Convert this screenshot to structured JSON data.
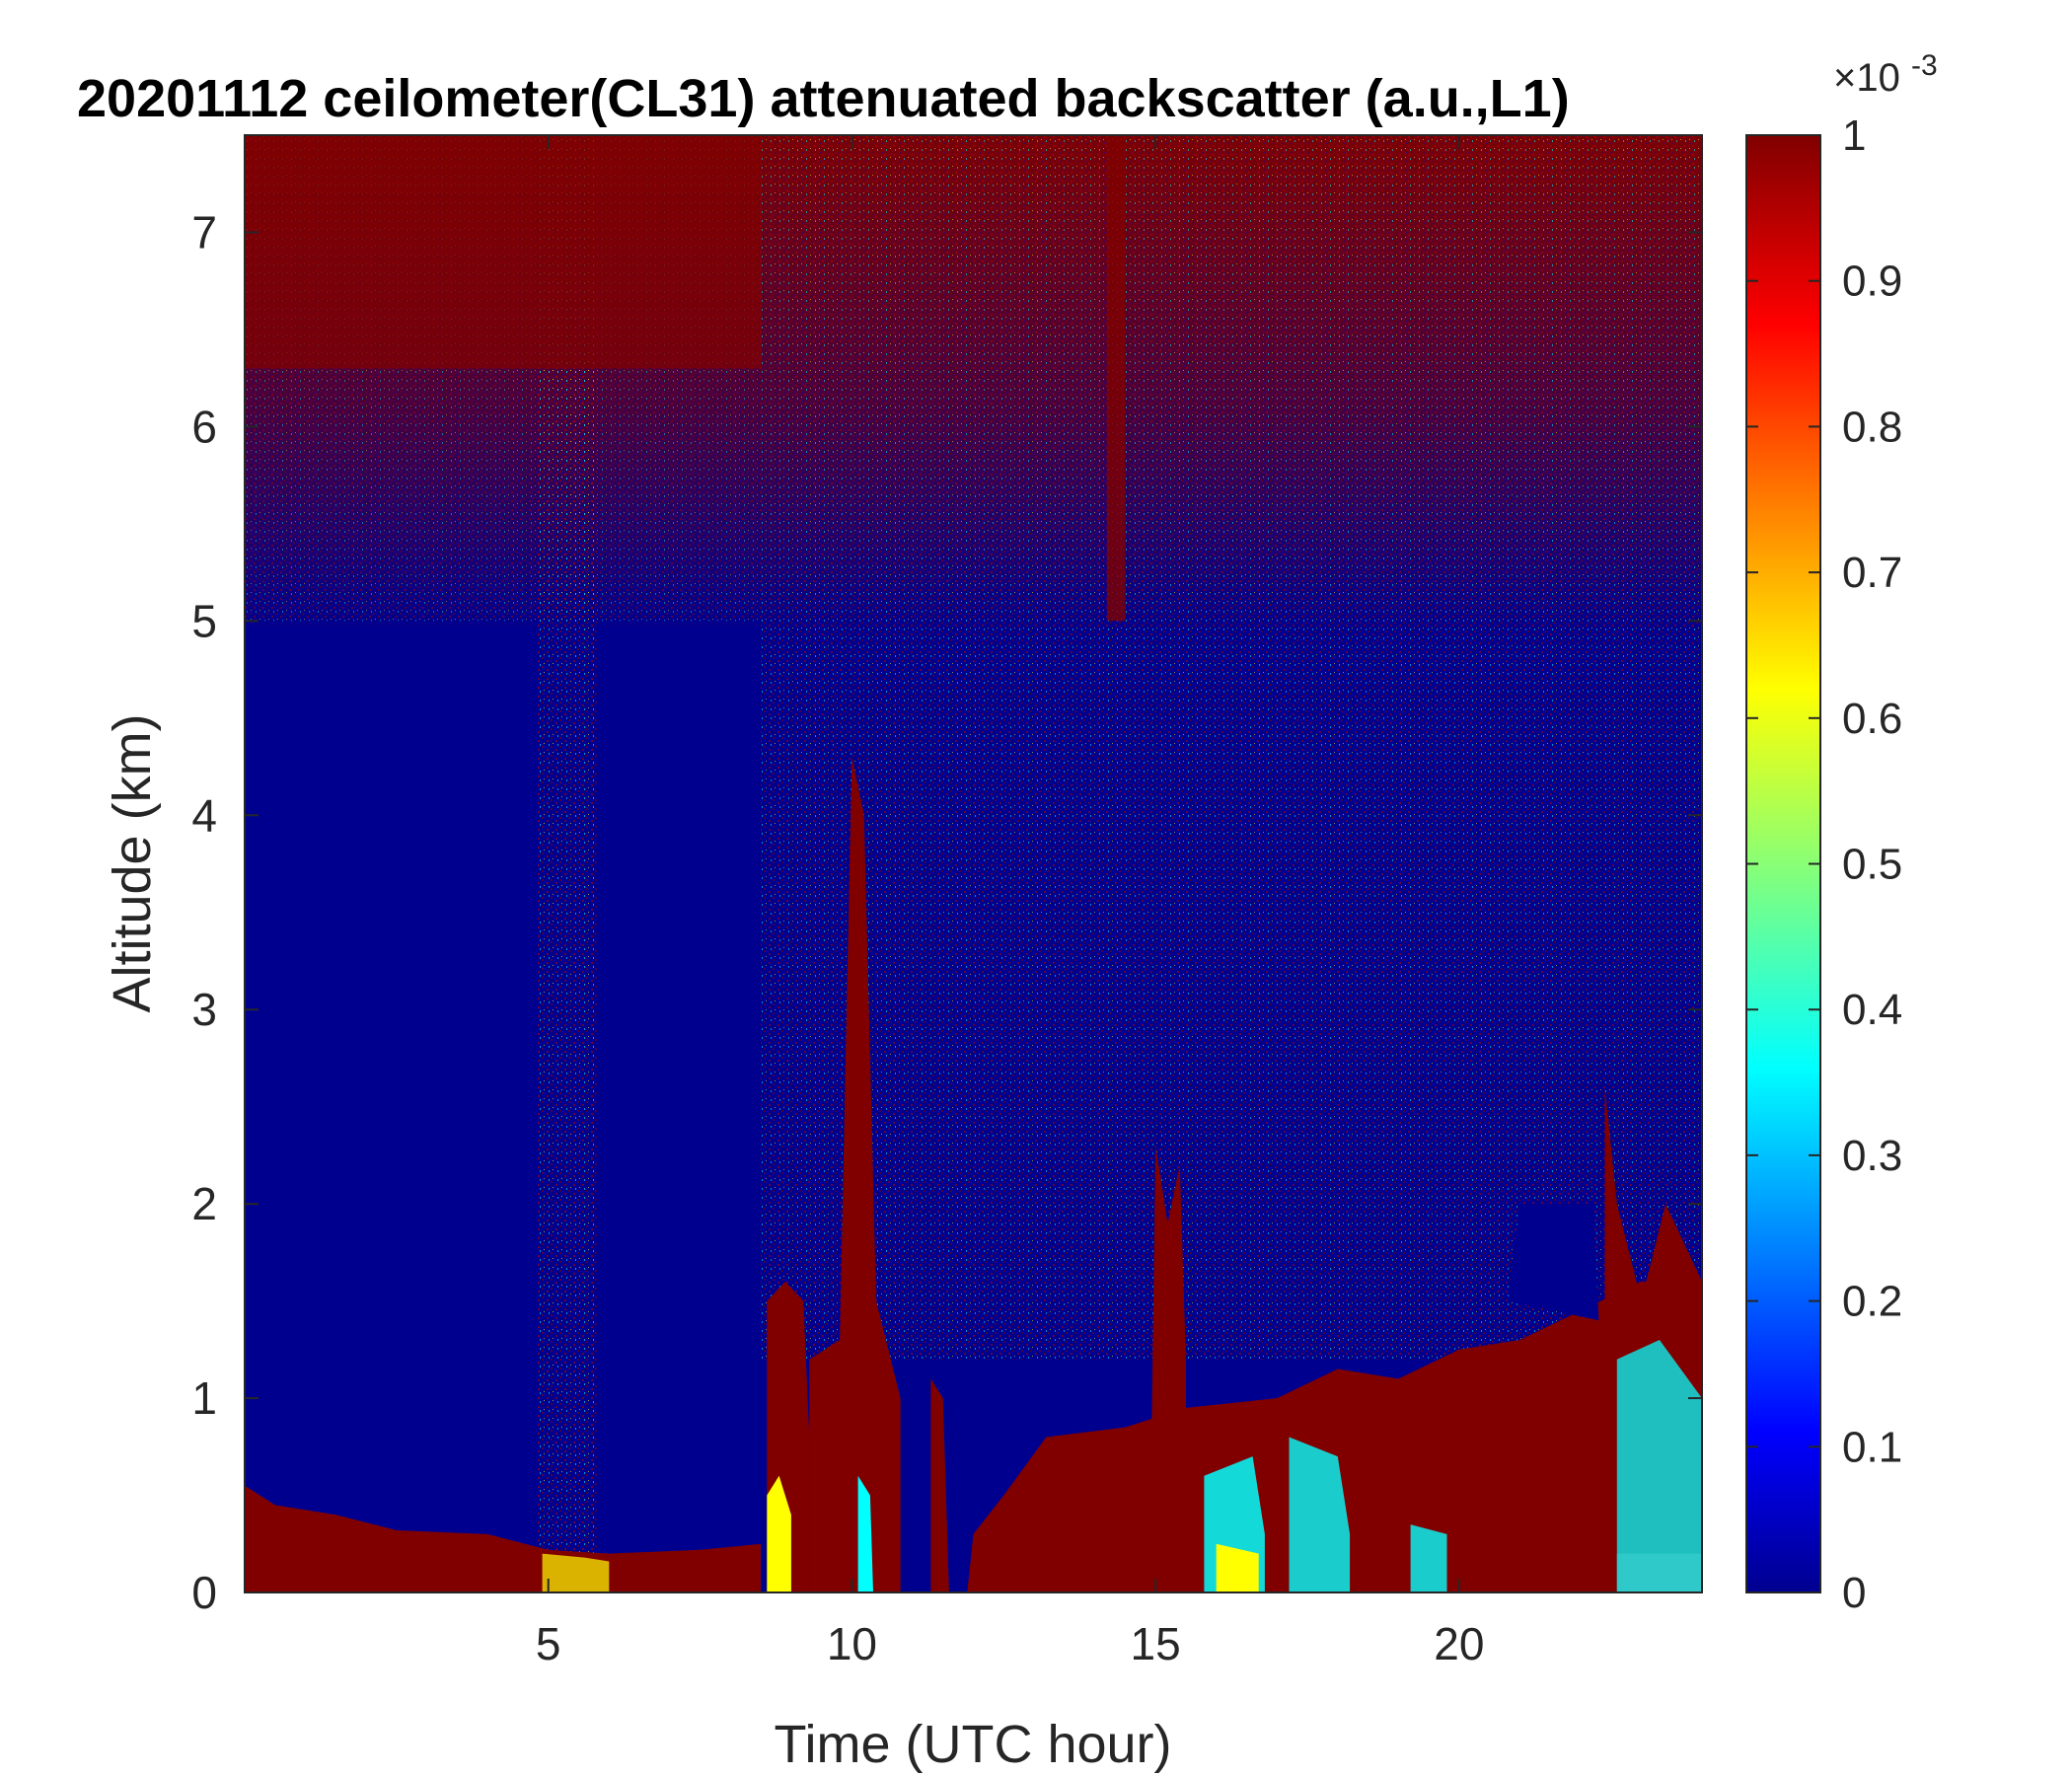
{
  "chart_data": {
    "type": "heatmap",
    "title": "20201112 ceilometer(CL31) attenuated backscatter (a.u.,L1)",
    "xlabel": "Time (UTC hour)",
    "ylabel": "Altitude (km)",
    "xlim": [
      0,
      24
    ],
    "ylim": [
      0,
      7.5
    ],
    "x_ticks": [
      5,
      10,
      15,
      20
    ],
    "y_ticks": [
      0,
      1,
      2,
      3,
      4,
      5,
      6,
      7
    ],
    "colorbar": {
      "colormap": "jet",
      "range": [
        0,
        1
      ],
      "exponent_label": "×10",
      "exponent_power": "-3",
      "ticks": [
        0,
        0.1,
        0.2,
        0.3,
        0.4,
        0.5,
        0.6,
        0.7,
        0.8,
        0.9,
        1
      ]
    },
    "colors": {
      "saturated": "#800000",
      "background_low": "#00008f",
      "jet_stops": [
        "#00008f",
        "#0000ff",
        "#00ffff",
        "#ffff00",
        "#ff0000",
        "#800000"
      ]
    },
    "features": [
      {
        "name": "surface layer",
        "x_range": [
          0,
          8.5
        ],
        "top_km": [
          0.5,
          0.2
        ]
      },
      {
        "name": "boundary layer top",
        "x_range": [
          12,
          24
        ],
        "top_km": [
          0.3,
          1.6
        ]
      },
      {
        "name": "cloud column",
        "x_range": [
          8.6,
          9.3
        ],
        "top_km": 1.5
      },
      {
        "name": "cloud column",
        "x_range": [
          9.8,
          10.4
        ],
        "top_km": 4.3
      },
      {
        "name": "cloud column",
        "x_range": [
          15,
          15.5
        ],
        "top_km": 2.3
      }
    ]
  }
}
